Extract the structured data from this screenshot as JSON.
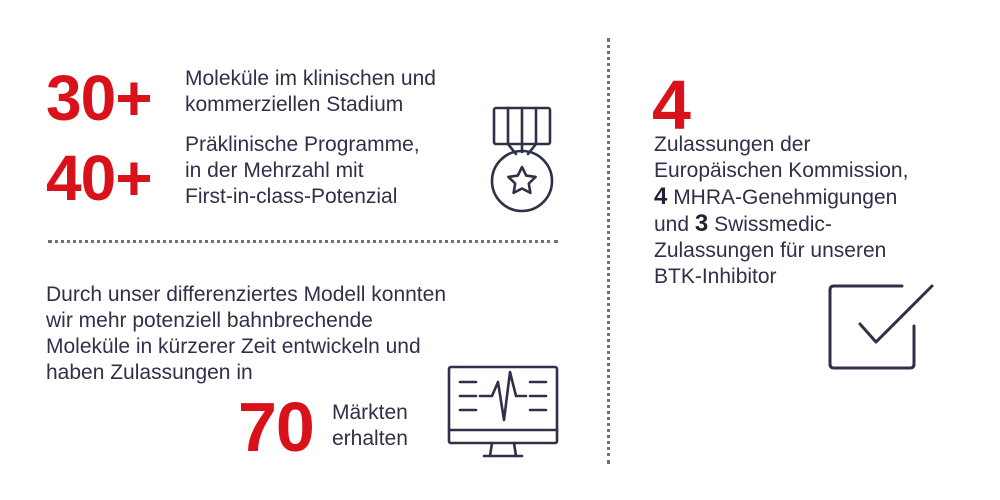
{
  "stats": {
    "molecules": {
      "value": "30+",
      "label_line1": "Moleküle im klinischen und",
      "label_line2": "kommerziellen Stadium"
    },
    "programs": {
      "value": "40+",
      "label_line1": "Präklinische Programme,",
      "label_line2": "in der Mehrzahl mit",
      "label_line3": "First-in-class-Potenzial"
    },
    "markets": {
      "value": "70",
      "label_line1": "Märkten",
      "label_line2": "erhalten"
    },
    "approvals": {
      "value": "4",
      "line1": "Zulassungen der",
      "line2": "Europäischen Kommission,",
      "mhra_num": "4",
      "mhra_text": " MHRA-Genehmigungen",
      "und": "und ",
      "swiss_num": "3",
      "swiss_text": " Swissmedic-",
      "line5": "Zulassungen für unseren",
      "line6": "BTK-Inhibitor"
    }
  },
  "paragraph": {
    "line1": "Durch unser differenziertes Modell konnten",
    "line2": "wir mehr potenziell bahnbrechende",
    "line3": "Moleküle in kürzerer Zeit entwickeln und",
    "line4": "haben Zulassungen in"
  },
  "colors": {
    "accent": "#d9111a",
    "text": "#2e3147",
    "icon": "#2e3147"
  },
  "icons": [
    "medal-icon",
    "monitor-heartbeat-icon",
    "checkbox-check-icon"
  ]
}
